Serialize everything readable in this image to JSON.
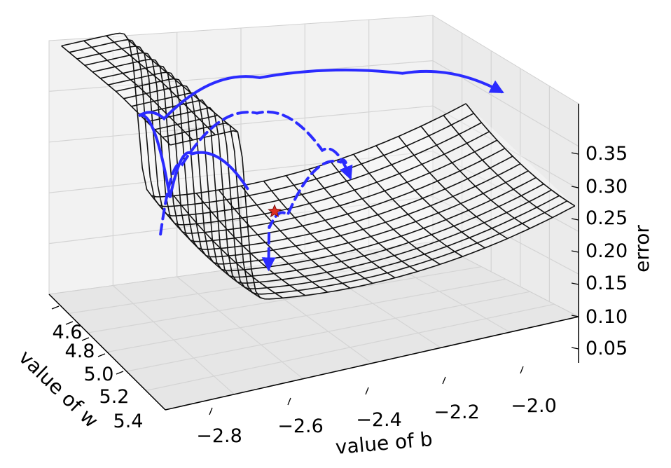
{
  "chart_data": {
    "type": "surface3d",
    "title": "",
    "xlabel": "value of b",
    "ylabel": "value of w",
    "zlabel": "error",
    "x_ticks": [
      "−2.8",
      "−2.6",
      "−2.4",
      "−2.2",
      "−2.0"
    ],
    "y_ticks": [
      "4.6",
      "4.8",
      "5.0",
      "5.2",
      "5.4"
    ],
    "z_ticks": [
      "0.05",
      "0.10",
      "0.15",
      "0.20",
      "0.25",
      "0.30",
      "0.35"
    ],
    "xlim": [
      -2.9,
      -1.95
    ],
    "ylim": [
      4.5,
      5.45
    ],
    "zlim": [
      0.0,
      0.4
    ],
    "grid": true,
    "surface": "wireframe error surface with a steep cliff at value of b ≈ -2.7 (error ≈ 0.4 to the left, ≈ 0.1 on the valley floor)",
    "minimum": {
      "b": -2.48,
      "w": 4.85,
      "error": 0.13,
      "marker": "red-star"
    },
    "trajectories": [
      {
        "style": "solid",
        "color": "#2b2bff",
        "points": [
          [
            -2.5,
            4.7,
            0.14
          ],
          [
            -2.6,
            4.6,
            0.19
          ],
          [
            -2.65,
            4.6,
            0.13
          ],
          [
            -2.75,
            4.7,
            0.29
          ],
          [
            -2.72,
            4.8,
            0.3
          ],
          [
            -2.5,
            4.8,
            0.33
          ],
          [
            -2.2,
            4.9,
            0.31
          ],
          [
            -2.0,
            5.0,
            0.27
          ]
        ]
      },
      {
        "style": "dashed",
        "color": "#2b2bff",
        "points": [
          [
            -2.7,
            4.7,
            0.1
          ],
          [
            -2.65,
            4.7,
            0.2
          ],
          [
            -2.45,
            4.6,
            0.23
          ],
          [
            -2.3,
            4.6,
            0.15
          ],
          [
            -2.25,
            4.65,
            0.11
          ]
        ]
      },
      {
        "style": "dashed",
        "color": "#2b2bff",
        "points": [
          [
            -2.25,
            4.65,
            0.11
          ],
          [
            -2.3,
            4.75,
            0.16
          ],
          [
            -2.45,
            4.85,
            0.12
          ],
          [
            -2.52,
            4.95,
            0.13
          ],
          [
            -2.55,
            5.05,
            0.09
          ]
        ]
      }
    ],
    "series_colors": {
      "trajectory": "#2b2bff",
      "surface": "#000000",
      "minimum": "#e03020"
    }
  }
}
